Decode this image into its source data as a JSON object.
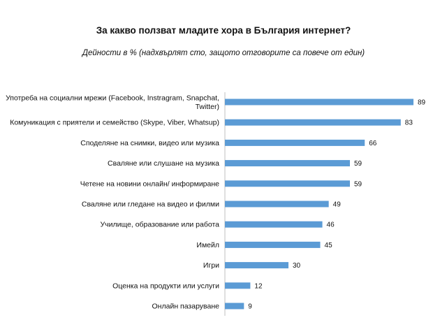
{
  "chart_data": {
    "type": "bar",
    "orientation": "horizontal",
    "title": "За какво ползват младите хора в България интернет?",
    "subtitle": "Дейности в % (надхвърлят сто, защото отговорите са повече от един)",
    "categories": [
      [
        "Употреба на социални мрежи (Facebook, Instragram, Snapchat,",
        "Twitter)"
      ],
      [
        "Комуникация с приятели и семейство (Skype, Viber, Whatsup)"
      ],
      [
        "Споделяне на снимки, видео или музика"
      ],
      [
        "Сваляне или слушане на музика"
      ],
      [
        "Четене на новини онлайн/ информиране"
      ],
      [
        "Сваляне или гледане на видео и филми"
      ],
      [
        "Училище, образование или работа"
      ],
      [
        "Имейл"
      ],
      [
        "Игри"
      ],
      [
        "Оценка на продукти или услуги"
      ],
      [
        "Онлайн пазаруване"
      ]
    ],
    "values": [
      89,
      83,
      66,
      59,
      59,
      49,
      46,
      45,
      30,
      12,
      9
    ],
    "xlim": [
      0,
      100
    ],
    "grid": false,
    "legend": "none",
    "bar_color": "#5b9bd5",
    "axis_color": "#bfbfbf"
  }
}
